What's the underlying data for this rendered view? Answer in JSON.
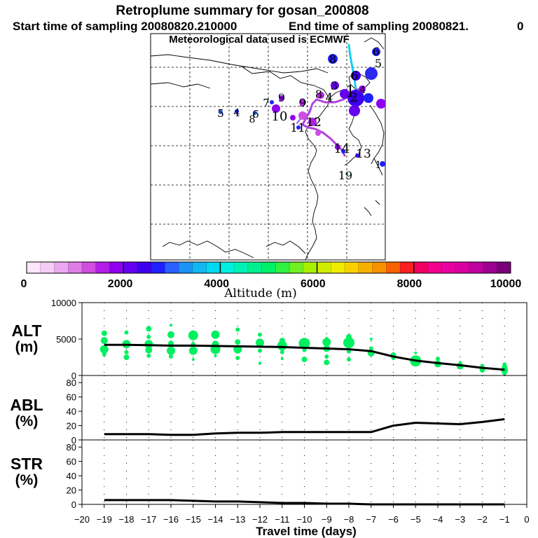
{
  "titles": {
    "main": "Retroplume summary for gosan_200808",
    "start": "Start time of sampling 20080820.210000",
    "end": "End time of sampling 20080821.",
    "end_suffix": "0",
    "met": "Meteorological data used is ECMWF"
  },
  "colorbar": {
    "label": "Altitude (m)",
    "ticks": [
      "0",
      "2000",
      "4000",
      "6000",
      "8000",
      "10000"
    ],
    "colors": [
      "#fbe6fb",
      "#f4ccf4",
      "#eaa8ee",
      "#df7de6",
      "#cf4de0",
      "#b21ee6",
      "#9000ee",
      "#6500f0",
      "#3d00ee",
      "#2020ff",
      "#2a60ff",
      "#1c92f5",
      "#10b8f0",
      "#00d8f0",
      "#00f0e0",
      "#00f0b8",
      "#00f090",
      "#00f068",
      "#30f040",
      "#70f020",
      "#a8f000",
      "#d0ec00",
      "#f0ec00",
      "#f8d000",
      "#f8b000",
      "#f89000",
      "#f86000",
      "#f82020",
      "#f00060",
      "#f0008c",
      "#e800a0",
      "#d800a0",
      "#c000a0",
      "#9c0090",
      "#7a0078"
    ]
  },
  "map": {
    "labels": [
      {
        "t": "1",
        "x": 500,
        "y": 138,
        "fs": 22
      },
      {
        "t": "2",
        "x": 505,
        "y": 145,
        "fs": 18
      },
      {
        "t": "3",
        "x": 477,
        "y": 128,
        "fs": 16
      },
      {
        "t": "4",
        "x": 470,
        "y": 145,
        "fs": 17
      },
      {
        "t": "5",
        "x": 540,
        "y": 96,
        "fs": 16
      },
      {
        "t": "6",
        "x": 537,
        "y": 79,
        "fs": 16
      },
      {
        "t": "6",
        "x": 506,
        "y": 114,
        "fs": 17
      },
      {
        "t": "8",
        "x": 475,
        "y": 90,
        "fs": 16
      },
      {
        "t": "8",
        "x": 455,
        "y": 140,
        "fs": 16
      },
      {
        "t": "9",
        "x": 402,
        "y": 145,
        "fs": 16
      },
      {
        "t": "9",
        "x": 432,
        "y": 152,
        "fs": 16
      },
      {
        "t": "10",
        "x": 399,
        "y": 172,
        "fs": 18
      },
      {
        "t": "11",
        "x": 425,
        "y": 188,
        "fs": 17
      },
      {
        "t": "12",
        "x": 448,
        "y": 180,
        "fs": 17
      },
      {
        "t": "13",
        "x": 519,
        "y": 225,
        "fs": 17
      },
      {
        "t": "14",
        "x": 488,
        "y": 218,
        "fs": 18
      },
      {
        "t": "19",
        "x": 493,
        "y": 256,
        "fs": 16
      },
      {
        "t": "5",
        "x": 315,
        "y": 167,
        "fs": 15
      },
      {
        "t": "4",
        "x": 338,
        "y": 166,
        "fs": 15
      },
      {
        "t": "6",
        "x": 365,
        "y": 168,
        "fs": 15
      },
      {
        "t": "8",
        "x": 360,
        "y": 175,
        "fs": 14
      },
      {
        "t": "7",
        "x": 380,
        "y": 152,
        "fs": 15
      },
      {
        "t": "4",
        "x": 518,
        "y": 133,
        "fs": 14
      },
      {
        "t": "1",
        "x": 540,
        "y": 240,
        "fs": 14
      }
    ]
  },
  "panels": {
    "alt": {
      "label": "ALT",
      "unit": "(m)"
    },
    "abl": {
      "label": "ABL",
      "unit": "(%)"
    },
    "str": {
      "label": "STR",
      "unit": "(%)"
    }
  },
  "chart_data": [
    {
      "type": "scatter",
      "title": "ALT",
      "xlabel": "Travel time (days)",
      "ylabel": "(m)",
      "xlim": [
        -20,
        0
      ],
      "ylim": [
        0,
        10000
      ],
      "yticks": [
        0,
        5000,
        10000
      ],
      "mean_line": {
        "x": [
          -19,
          -18,
          -17,
          -16,
          -15,
          -14,
          -13,
          -12,
          -11,
          -10,
          -9,
          -8,
          -7,
          -6,
          -5,
          -4,
          -3,
          -2,
          -1
        ],
        "y": [
          4200,
          4200,
          4150,
          4100,
          4100,
          4050,
          4000,
          3950,
          3900,
          3800,
          3700,
          3600,
          3350,
          2600,
          2050,
          1700,
          1400,
          1050,
          800
        ]
      },
      "points": [
        {
          "x": -19,
          "y": 5800,
          "s": 4
        },
        {
          "x": -19,
          "y": 4800,
          "s": 5
        },
        {
          "x": -19,
          "y": 3600,
          "s": 6
        },
        {
          "x": -19,
          "y": 2900,
          "s": 3
        },
        {
          "x": -18,
          "y": 5900,
          "s": 3
        },
        {
          "x": -18,
          "y": 4300,
          "s": 6
        },
        {
          "x": -18,
          "y": 3200,
          "s": 3
        },
        {
          "x": -18,
          "y": 2500,
          "s": 4
        },
        {
          "x": -17,
          "y": 6400,
          "s": 4
        },
        {
          "x": -17,
          "y": 5300,
          "s": 3
        },
        {
          "x": -17,
          "y": 4300,
          "s": 6
        },
        {
          "x": -17,
          "y": 3500,
          "s": 5
        },
        {
          "x": -17,
          "y": 2700,
          "s": 3
        },
        {
          "x": -16,
          "y": 6900,
          "s": 2
        },
        {
          "x": -16,
          "y": 5600,
          "s": 5
        },
        {
          "x": -16,
          "y": 4400,
          "s": 4
        },
        {
          "x": -16,
          "y": 3400,
          "s": 6
        },
        {
          "x": -16,
          "y": 2600,
          "s": 3
        },
        {
          "x": -15,
          "y": 5500,
          "s": 7
        },
        {
          "x": -15,
          "y": 4300,
          "s": 3
        },
        {
          "x": -15,
          "y": 3400,
          "s": 6
        },
        {
          "x": -15,
          "y": 2200,
          "s": 2
        },
        {
          "x": -14,
          "y": 5600,
          "s": 6
        },
        {
          "x": -14,
          "y": 4300,
          "s": 5
        },
        {
          "x": -14,
          "y": 3600,
          "s": 7
        },
        {
          "x": -14,
          "y": 2700,
          "s": 2
        },
        {
          "x": -13,
          "y": 6300,
          "s": 3
        },
        {
          "x": -13,
          "y": 4600,
          "s": 4
        },
        {
          "x": -13,
          "y": 3600,
          "s": 6
        },
        {
          "x": -13,
          "y": 2400,
          "s": 3
        },
        {
          "x": -12,
          "y": 5600,
          "s": 3
        },
        {
          "x": -12,
          "y": 4500,
          "s": 6
        },
        {
          "x": -12,
          "y": 3400,
          "s": 3
        },
        {
          "x": -12,
          "y": 1700,
          "s": 2
        },
        {
          "x": -11,
          "y": 4800,
          "s": 4
        },
        {
          "x": -11,
          "y": 4100,
          "s": 7
        },
        {
          "x": -11,
          "y": 3200,
          "s": 3
        },
        {
          "x": -11,
          "y": 2300,
          "s": 2
        },
        {
          "x": -10,
          "y": 4400,
          "s": 8
        },
        {
          "x": -10,
          "y": 3500,
          "s": 3
        },
        {
          "x": -10,
          "y": 2200,
          "s": 4
        },
        {
          "x": -9,
          "y": 5100,
          "s": 2
        },
        {
          "x": -9,
          "y": 4600,
          "s": 6
        },
        {
          "x": -9,
          "y": 3700,
          "s": 5
        },
        {
          "x": -9,
          "y": 2600,
          "s": 3
        },
        {
          "x": -9,
          "y": 1800,
          "s": 4
        },
        {
          "x": -8,
          "y": 5300,
          "s": 4
        },
        {
          "x": -8,
          "y": 4500,
          "s": 8
        },
        {
          "x": -8,
          "y": 3300,
          "s": 3
        },
        {
          "x": -8,
          "y": 2200,
          "s": 3
        },
        {
          "x": -7,
          "y": 5000,
          "s": 2
        },
        {
          "x": -7,
          "y": 3700,
          "s": 3
        },
        {
          "x": -7,
          "y": 3100,
          "s": 5
        },
        {
          "x": -6,
          "y": 2800,
          "s": 4
        },
        {
          "x": -6,
          "y": 2400,
          "s": 3
        },
        {
          "x": -5,
          "y": 3100,
          "s": 2
        },
        {
          "x": -5,
          "y": 2000,
          "s": 8
        },
        {
          "x": -4,
          "y": 2300,
          "s": 3
        },
        {
          "x": -4,
          "y": 1600,
          "s": 5
        },
        {
          "x": -3,
          "y": 1800,
          "s": 2
        },
        {
          "x": -3,
          "y": 1300,
          "s": 5
        },
        {
          "x": -2,
          "y": 1300,
          "s": 3
        },
        {
          "x": -2,
          "y": 800,
          "s": 4
        },
        {
          "x": -1,
          "y": 1500,
          "s": 3
        },
        {
          "x": -1,
          "y": 1100,
          "s": 4
        },
        {
          "x": -1,
          "y": 700,
          "s": 5
        },
        {
          "x": -1,
          "y": 300,
          "s": 3
        }
      ],
      "point_color": "#00f060"
    },
    {
      "type": "line",
      "title": "ABL",
      "xlabel": "Travel time (days)",
      "ylabel": "(%)",
      "xlim": [
        -20,
        0
      ],
      "ylim": [
        0,
        90
      ],
      "yticks": [
        0,
        20,
        40,
        60,
        80
      ],
      "x": [
        -19,
        -18,
        -17,
        -16,
        -15,
        -14,
        -13,
        -12,
        -11,
        -10,
        -9,
        -8,
        -7,
        -6,
        -5,
        -4,
        -3,
        -2,
        -1
      ],
      "y": [
        8,
        8,
        8,
        7,
        7,
        9,
        10,
        10,
        11,
        11,
        11,
        11,
        11,
        20,
        24,
        23,
        22,
        25,
        29
      ]
    },
    {
      "type": "line",
      "title": "STR",
      "xlabel": "Travel time (days)",
      "ylabel": "(%)",
      "xlim": [
        -20,
        0
      ],
      "ylim": [
        0,
        90
      ],
      "yticks": [
        0,
        20,
        40,
        60,
        80
      ],
      "x": [
        -19,
        -18,
        -17,
        -16,
        -15,
        -14,
        -13,
        -12,
        -11,
        -10,
        -9,
        -8,
        -7,
        -6,
        -5,
        -4,
        -3,
        -2,
        -1
      ],
      "y": [
        6,
        6,
        6,
        6,
        5,
        4,
        4,
        3,
        2,
        2,
        1,
        1,
        0,
        0,
        0,
        0,
        0,
        0,
        0
      ]
    }
  ],
  "xaxis": {
    "label": "Travel time (days)",
    "ticks": [
      -20,
      -19,
      -18,
      -17,
      -16,
      -15,
      -14,
      -13,
      -12,
      -11,
      -10,
      -9,
      -8,
      -7,
      -6,
      -5,
      -4,
      -3,
      -2,
      -1,
      0
    ]
  }
}
